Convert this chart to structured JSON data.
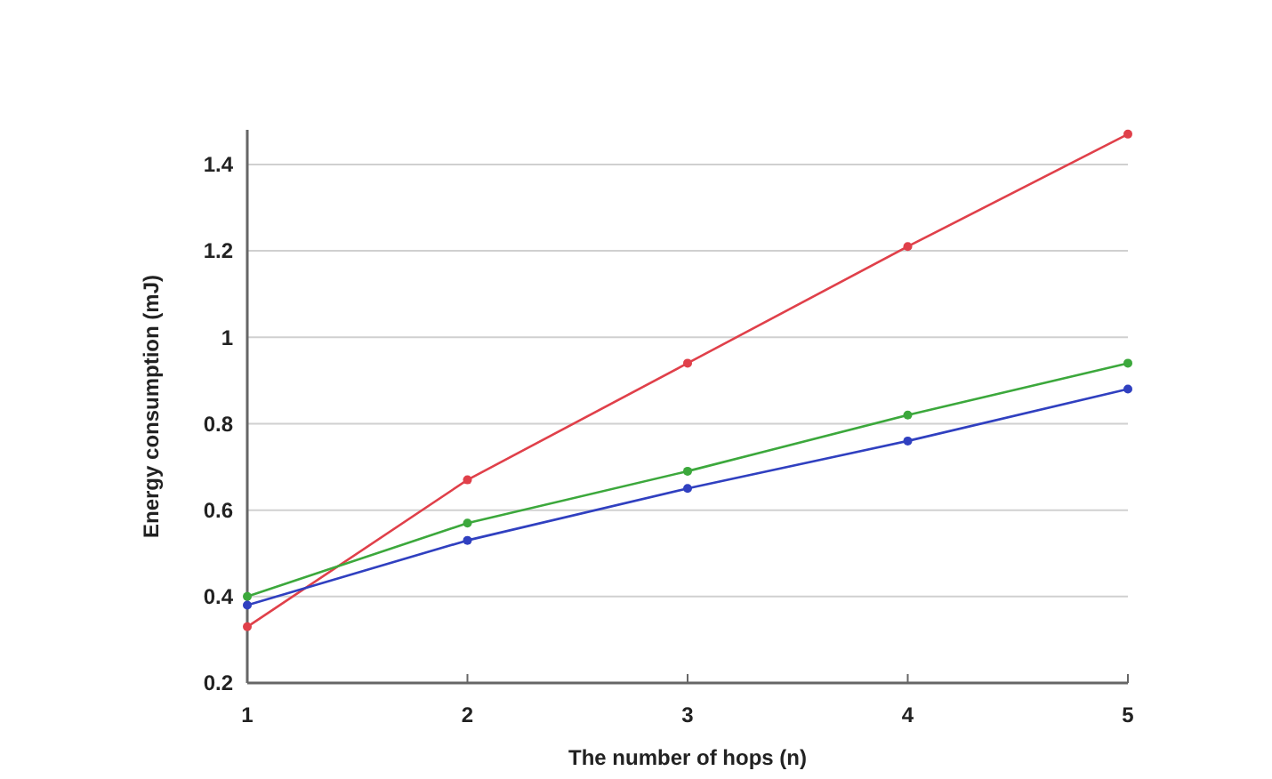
{
  "chart_data": {
    "type": "line",
    "xlabel": "The number of hops (n)",
    "ylabel": "Energy consumption (mJ)",
    "x": [
      1,
      2,
      3,
      4,
      5
    ],
    "series": [
      {
        "color": "#e0404a",
        "values": [
          0.33,
          0.67,
          0.94,
          1.21,
          1.47
        ]
      },
      {
        "color": "#3ca83c",
        "values": [
          0.4,
          0.57,
          0.69,
          0.82,
          0.94
        ]
      },
      {
        "color": "#3040c0",
        "values": [
          0.38,
          0.53,
          0.65,
          0.76,
          0.88
        ]
      }
    ],
    "xlim": [
      1,
      5
    ],
    "xticks": [
      1,
      2,
      3,
      4,
      5
    ],
    "ylim": [
      0.2,
      1.48
    ],
    "yticks": [
      0.2,
      0.4,
      0.6,
      0.8,
      1,
      1.2,
      1.4
    ],
    "grid": "y",
    "marker": "circle",
    "line_style": "solid"
  }
}
